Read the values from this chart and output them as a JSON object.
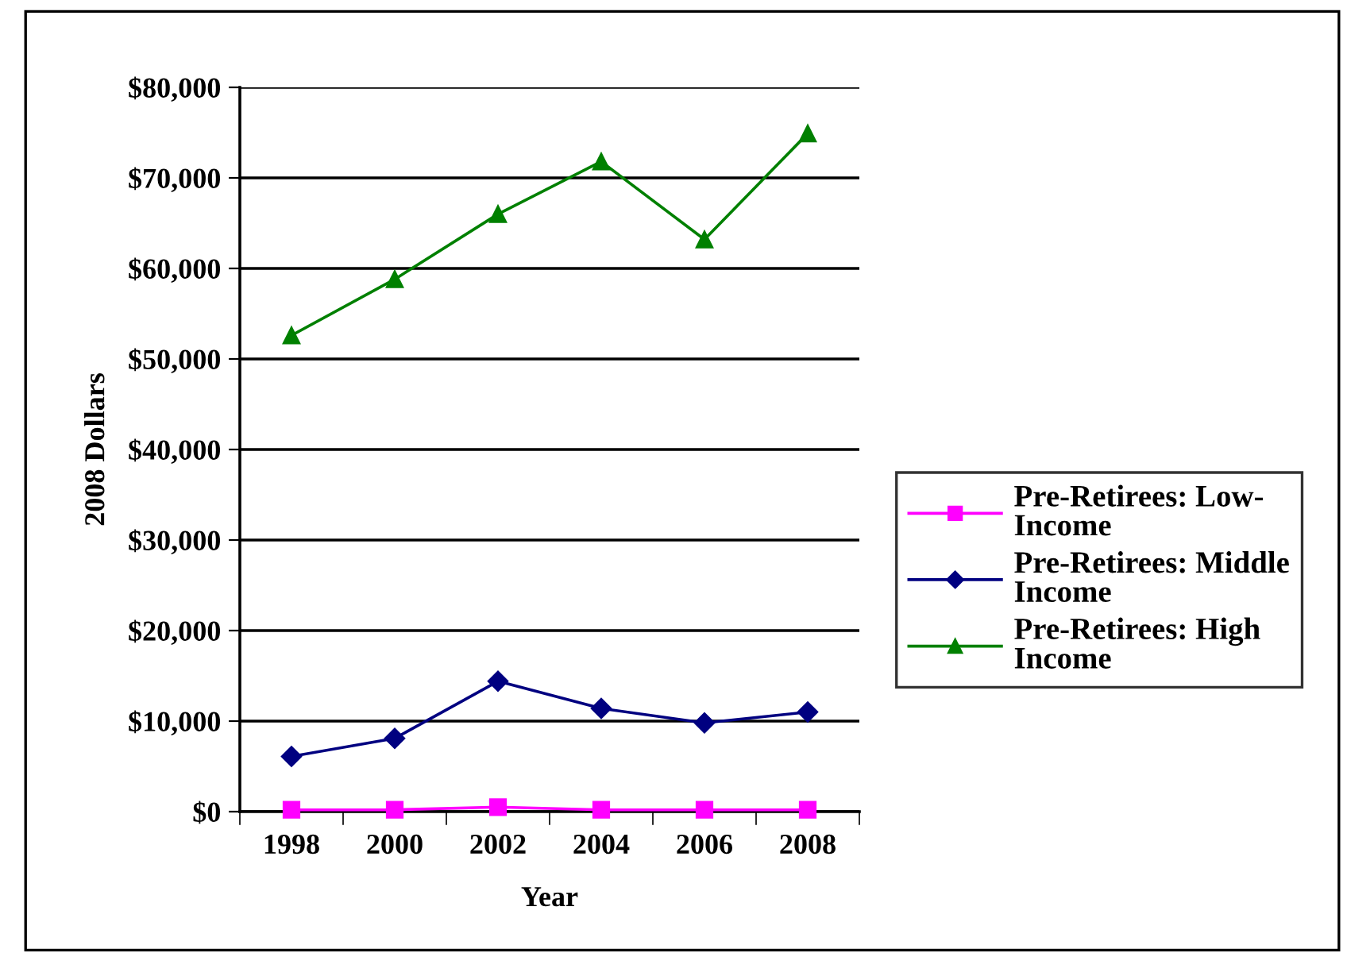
{
  "chart_data": {
    "type": "line",
    "xlabel": "Year",
    "ylabel": "2008 Dollars",
    "categories": [
      "1998",
      "2000",
      "2002",
      "2004",
      "2006",
      "2008"
    ],
    "series": [
      {
        "name": "Pre-Retirees: Low-\nIncome",
        "color": "#ff00ff",
        "marker": "square",
        "values": [
          200,
          200,
          500,
          200,
          200,
          200
        ]
      },
      {
        "name": "Pre-Retirees: Middle\nIncome",
        "color": "#000080",
        "marker": "diamond",
        "values": [
          6100,
          8100,
          14400,
          11400,
          9800,
          11000
        ]
      },
      {
        "name": "Pre-Retirees: High\nIncome",
        "color": "#008000",
        "marker": "triangle",
        "values": [
          52600,
          58800,
          66000,
          71800,
          63200,
          74900
        ]
      }
    ],
    "ylim": [
      0,
      80000
    ],
    "yticks": [
      {
        "value": 0,
        "label": "$0"
      },
      {
        "value": 10000,
        "label": "$10,000"
      },
      {
        "value": 20000,
        "label": "$20,000"
      },
      {
        "value": 30000,
        "label": "$30,000"
      },
      {
        "value": 40000,
        "label": "$40,000"
      },
      {
        "value": 50000,
        "label": "$50,000"
      },
      {
        "value": 60000,
        "label": "$60,000"
      },
      {
        "value": 70000,
        "label": "$70,000"
      },
      {
        "value": 80000,
        "label": "$80,000"
      }
    ],
    "grid": "y",
    "legend": "right",
    "line_style": "solid"
  }
}
